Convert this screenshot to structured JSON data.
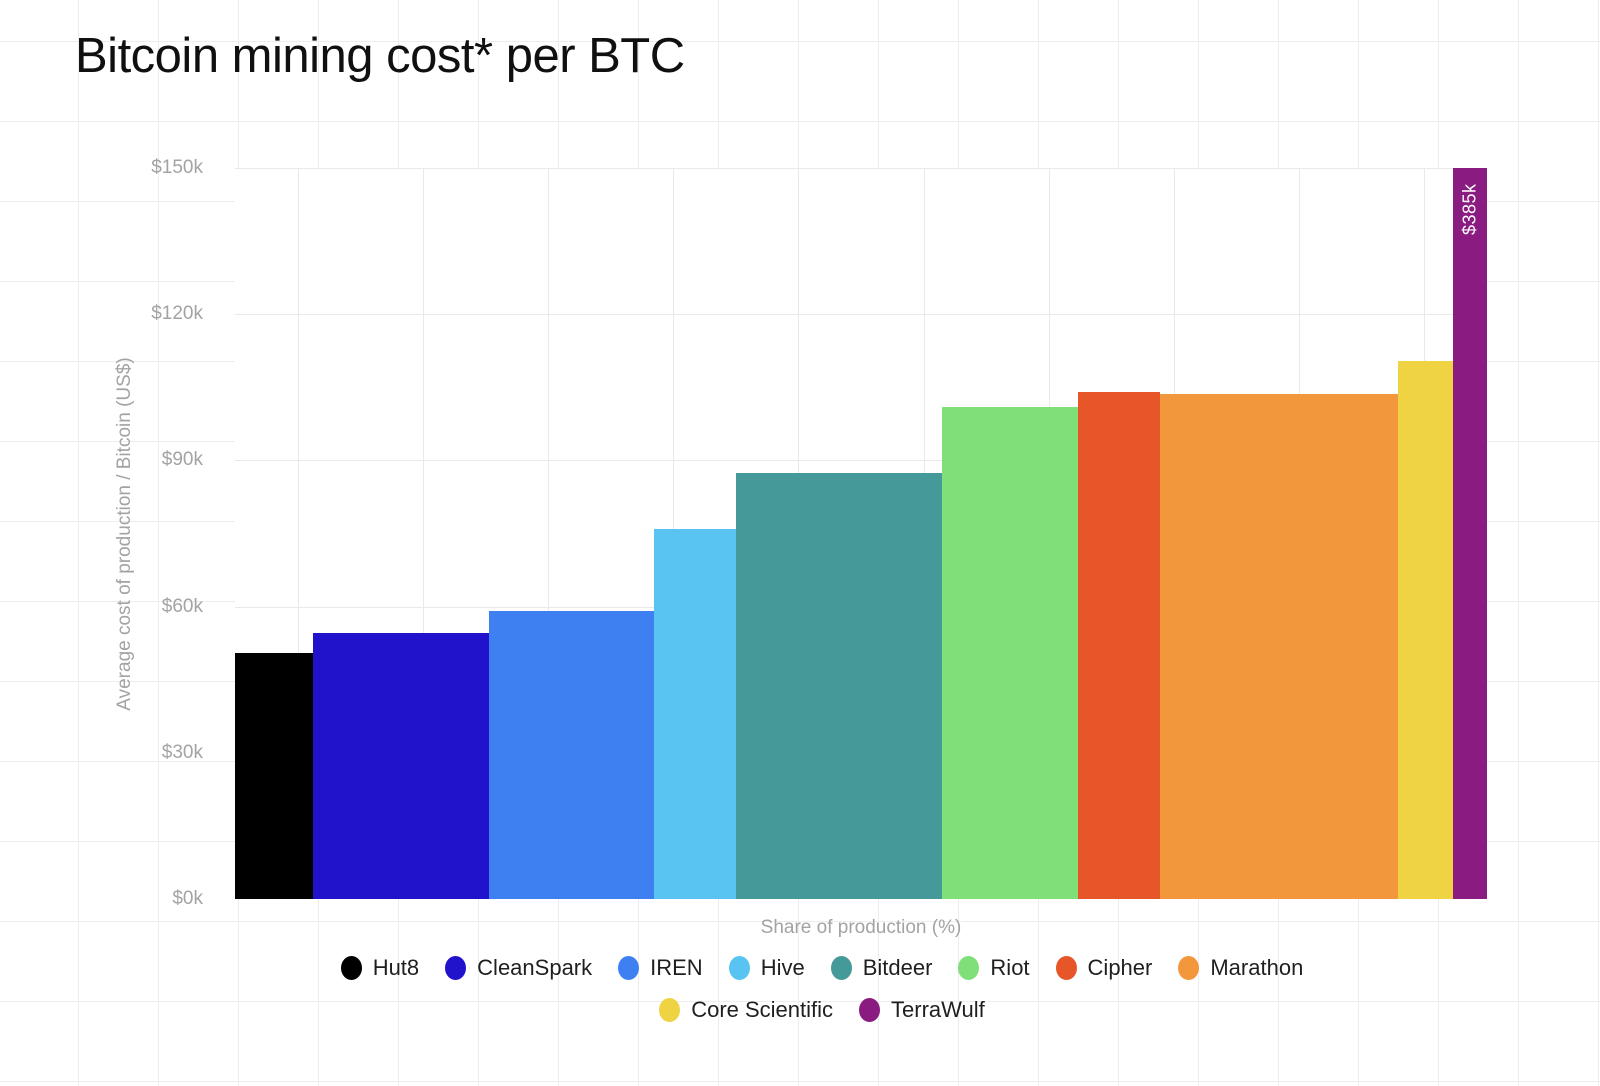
{
  "title": "Bitcoin mining cost* per BTC",
  "colors": {
    "background": "#ffffff",
    "page_grid": "#ededed",
    "plot_grid": "#e9e9e9",
    "axis_text": "#a3a3a3",
    "title_text": "#101010",
    "legend_text": "#1f1f1f",
    "bar_label_text": "#ffffff"
  },
  "chart_data": {
    "type": "bar",
    "variant": "marimekko-variable-width",
    "title": "Bitcoin mining cost* per BTC",
    "xlabel": "Share of production (%)",
    "ylabel": "Average cost of production / Bitcoin (US$)",
    "ylim": [
      0,
      150
    ],
    "xlim_pct": [
      0,
      100
    ],
    "y_ticks": [
      "$0k",
      "$30k",
      "$60k",
      "$90k",
      "$120k",
      "$150k"
    ],
    "y_tick_values": [
      0,
      30,
      60,
      90,
      120,
      150
    ],
    "x_grid_pct": [
      5,
      15,
      25,
      35,
      45,
      55,
      65,
      75,
      85,
      95
    ],
    "grid": true,
    "legend_position": "bottom",
    "series": [
      {
        "name": "Hut8",
        "share_pct": 6.2,
        "cost_k": 50.5,
        "color": "#000000"
      },
      {
        "name": "CleanSpark",
        "share_pct": 14.1,
        "cost_k": 54.5,
        "color": "#2113cb"
      },
      {
        "name": "IREN",
        "share_pct": 13.2,
        "cost_k": 59,
        "color": "#3e80f2"
      },
      {
        "name": "Hive",
        "share_pct": 6.5,
        "cost_k": 76,
        "color": "#59c3f2"
      },
      {
        "name": "Bitdeer",
        "share_pct": 16.5,
        "cost_k": 87.5,
        "color": "#459a99"
      },
      {
        "name": "Riot",
        "share_pct": 10.8,
        "cost_k": 101,
        "color": "#81df79"
      },
      {
        "name": "Cipher",
        "share_pct": 6.6,
        "cost_k": 104,
        "color": "#e65629"
      },
      {
        "name": "Marathon",
        "share_pct": 19.0,
        "cost_k": 103.7,
        "color": "#f3973d"
      },
      {
        "name": "Core Scientific",
        "share_pct": 4.4,
        "cost_k": 110.5,
        "color": "#efd343"
      },
      {
        "name": "TerraWulf",
        "share_pct": 2.7,
        "cost_k": 385,
        "color": "#8a1b80",
        "label": "$385k",
        "clipped": true
      }
    ]
  }
}
